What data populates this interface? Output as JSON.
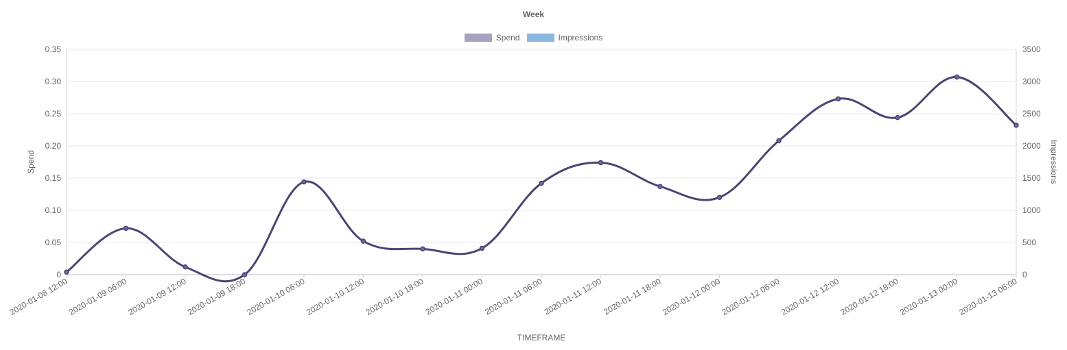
{
  "chart_data": {
    "type": "line",
    "title": "Week",
    "xlabel": "TIMEFRAME",
    "ylabel": "Spend",
    "ylabel_right": "Impressions",
    "categories": [
      "2020-01-08 12:00",
      "2020-01-09 06:00",
      "2020-01-09 12:00",
      "2020-01-09 18:00",
      "2020-01-10 06:00",
      "2020-01-10 12:00",
      "2020-01-10 18:00",
      "2020-01-11 00:00",
      "2020-01-11 06:00",
      "2020-01-11 12:00",
      "2020-01-11 18:00",
      "2020-01-12 00:00",
      "2020-01-12 06:00",
      "2020-01-12 12:00",
      "2020-01-12 18:00",
      "2020-01-13 00:00",
      "2020-01-13 06:00"
    ],
    "series": [
      {
        "name": "Spend",
        "axis": "left",
        "color": "#4a4478",
        "legend_color": "#a99fbf",
        "values": [
          0.004,
          0.072,
          0.012,
          0.0,
          0.144,
          0.052,
          0.04,
          0.041,
          0.142,
          0.174,
          0.137,
          0.12,
          0.208,
          0.273,
          0.244,
          0.307,
          0.232
        ]
      },
      {
        "name": "Impressions",
        "axis": "right",
        "color": "#4a4478",
        "legend_color": "#8bb8de",
        "values": [
          40,
          720,
          120,
          0,
          1440,
          520,
          400,
          410,
          1420,
          1740,
          1370,
          1200,
          2080,
          2730,
          2440,
          3070,
          2320
        ]
      }
    ],
    "ylim": [
      0,
      0.35
    ],
    "yticks": [
      "0",
      "0.05",
      "0.10",
      "0.15",
      "0.20",
      "0.25",
      "0.30",
      "0.35"
    ],
    "ylim_right": [
      0,
      3500
    ],
    "yticks_right": [
      "0",
      "500",
      "1000",
      "1500",
      "2000",
      "2500",
      "3000",
      "3500"
    ],
    "grid": true,
    "legend_position": "top"
  }
}
